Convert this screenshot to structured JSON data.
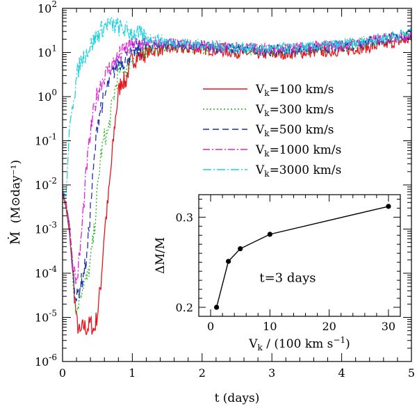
{
  "chart_data": [
    {
      "type": "line",
      "title": "",
      "xlabel": "t (days)",
      "ylabel_main": "Ṁ",
      "ylabel_unit": "(M⊙day⁻¹)",
      "xlim": [
        0,
        5
      ],
      "ylim": [
        1e-06,
        100
      ],
      "yscale": "log",
      "x_ticks": [
        0,
        1,
        2,
        3,
        4,
        5
      ],
      "x_tick_labels": [
        "0",
        "1",
        "2",
        "3",
        "4",
        "5"
      ],
      "y_ticks": [
        1e-06,
        1e-05,
        0.0001,
        0.001,
        0.01,
        0.1,
        1,
        10,
        100
      ],
      "y_tick_labels": [
        {
          "base": "10",
          "exp": "-6"
        },
        {
          "base": "10",
          "exp": "-5"
        },
        {
          "base": "10",
          "exp": "-4"
        },
        {
          "base": "10",
          "exp": "-3"
        },
        {
          "base": "10",
          "exp": "-2"
        },
        {
          "base": "10",
          "exp": "-1"
        },
        {
          "base": "10",
          "exp": "0"
        },
        {
          "base": "10",
          "exp": "1"
        },
        {
          "base": "10",
          "exp": "2"
        }
      ],
      "legend_position": "center-right",
      "series": [
        {
          "name": "Vk=100 km/s",
          "label_pre": "V",
          "label_sub": "k",
          "label_post": "=100 km/s",
          "color": "#e8141c",
          "dash": "",
          "points": [
            [
              0,
              0.0065
            ],
            [
              0.05,
              0.003
            ],
            [
              0.1,
              0.0008
            ],
            [
              0.15,
              8e-05
            ],
            [
              0.2,
              8.5e-06
            ],
            [
              0.25,
              4e-06
            ],
            [
              0.3,
              6.5e-06
            ],
            [
              0.35,
              5.5e-06
            ],
            [
              0.4,
              7.5e-06
            ],
            [
              0.45,
              5e-06
            ],
            [
              0.5,
              1.2e-05
            ],
            [
              0.55,
              6e-05
            ],
            [
              0.6,
              0.0009
            ],
            [
              0.65,
              0.004
            ],
            [
              0.7,
              0.03
            ],
            [
              0.75,
              0.25
            ],
            [
              0.8,
              1.2
            ],
            [
              0.85,
              2.5
            ],
            [
              0.9,
              2.0
            ],
            [
              0.95,
              4.5
            ],
            [
              1.0,
              7
            ],
            [
              1.2,
              10
            ],
            [
              1.5,
              12
            ],
            [
              2,
              12
            ],
            [
              2.5,
              10
            ],
            [
              3,
              9
            ],
            [
              3.5,
              10
            ],
            [
              4,
              11
            ],
            [
              4.5,
              14
            ],
            [
              5,
              20
            ]
          ]
        },
        {
          "name": "Vk=300 km/s",
          "label_pre": "V",
          "label_sub": "k",
          "label_post": "=300 km/s",
          "color": "#1db31d",
          "dash": "2,3",
          "points": [
            [
              0,
              0.007
            ],
            [
              0.05,
              0.0035
            ],
            [
              0.1,
              0.001
            ],
            [
              0.15,
              8e-05
            ],
            [
              0.2,
              1.2e-05
            ],
            [
              0.25,
              3.5e-05
            ],
            [
              0.3,
              6e-05
            ],
            [
              0.35,
              7e-05
            ],
            [
              0.4,
              0.00018
            ],
            [
              0.45,
              0.0008
            ],
            [
              0.5,
              0.007
            ],
            [
              0.55,
              0.05
            ],
            [
              0.6,
              0.12
            ],
            [
              0.65,
              0.15
            ],
            [
              0.7,
              0.5
            ],
            [
              0.75,
              1.4
            ],
            [
              0.8,
              3.5
            ],
            [
              0.85,
              5
            ],
            [
              0.9,
              4
            ],
            [
              1.0,
              8
            ],
            [
              1.2,
              12
            ],
            [
              1.5,
              14
            ],
            [
              2,
              13
            ],
            [
              2.5,
              12
            ],
            [
              3,
              11
            ],
            [
              3.5,
              12
            ],
            [
              4,
              14
            ],
            [
              4.5,
              18
            ],
            [
              5,
              24
            ]
          ]
        },
        {
          "name": "Vk=500 km/s",
          "label_pre": "V",
          "label_sub": "k",
          "label_post": "=500 km/s",
          "color": "#1c2fb0",
          "dash": "9,5",
          "points": [
            [
              0,
              0.007
            ],
            [
              0.05,
              0.004
            ],
            [
              0.1,
              0.0012
            ],
            [
              0.15,
              0.0001
            ],
            [
              0.2,
              2.5e-05
            ],
            [
              0.25,
              5e-05
            ],
            [
              0.3,
              9e-05
            ],
            [
              0.35,
              0.00025
            ],
            [
              0.4,
              0.003
            ],
            [
              0.45,
              0.03
            ],
            [
              0.5,
              0.25
            ],
            [
              0.55,
              0.6
            ],
            [
              0.6,
              0.9
            ],
            [
              0.65,
              1.8
            ],
            [
              0.7,
              3
            ],
            [
              0.8,
              6
            ],
            [
              0.9,
              7
            ],
            [
              1.0,
              10
            ],
            [
              1.2,
              14
            ],
            [
              1.5,
              15
            ],
            [
              2,
              14
            ],
            [
              2.5,
              12
            ],
            [
              3,
              11
            ],
            [
              3.5,
              12
            ],
            [
              4,
              14
            ],
            [
              4.5,
              19
            ],
            [
              5,
              25
            ]
          ]
        },
        {
          "name": "Vk=1000 km/s",
          "label_pre": "V",
          "label_sub": "k",
          "label_post": "=1000 km/s",
          "color": "#e21fd2",
          "dash": "10,3,2,3",
          "points": [
            [
              0,
              0.008
            ],
            [
              0.05,
              0.004
            ],
            [
              0.1,
              0.0012
            ],
            [
              0.15,
              0.00015
            ],
            [
              0.2,
              6e-05
            ],
            [
              0.25,
              0.0003
            ],
            [
              0.3,
              0.003
            ],
            [
              0.35,
              0.03
            ],
            [
              0.4,
              0.15
            ],
            [
              0.45,
              0.5
            ],
            [
              0.5,
              1.2
            ],
            [
              0.55,
              2
            ],
            [
              0.6,
              3
            ],
            [
              0.7,
              5
            ],
            [
              0.8,
              8
            ],
            [
              0.9,
              12
            ],
            [
              1.0,
              15
            ],
            [
              1.1,
              16
            ],
            [
              1.2,
              17
            ],
            [
              1.5,
              16
            ],
            [
              2,
              14
            ],
            [
              2.5,
              13
            ],
            [
              3,
              12
            ],
            [
              3.5,
              13
            ],
            [
              4,
              15
            ],
            [
              4.5,
              19
            ],
            [
              5,
              26
            ]
          ]
        },
        {
          "name": "Vk=3000 km/s",
          "label_pre": "V",
          "label_sub": "k",
          "label_post": "=3000 km/s",
          "color": "#20d2dc",
          "dash": "12,3,2,3",
          "points": [
            [
              0,
              0.008
            ],
            [
              0.05,
              0.005
            ],
            [
              0.1,
              0.2
            ],
            [
              0.15,
              0.8
            ],
            [
              0.2,
              2.5
            ],
            [
              0.25,
              6
            ],
            [
              0.3,
              8
            ],
            [
              0.4,
              14
            ],
            [
              0.5,
              25
            ],
            [
              0.6,
              38
            ],
            [
              0.65,
              45
            ],
            [
              0.7,
              42
            ],
            [
              0.8,
              38
            ],
            [
              0.9,
              32
            ],
            [
              1.0,
              28
            ],
            [
              1.2,
              22
            ],
            [
              1.5,
              18
            ],
            [
              2,
              15
            ],
            [
              2.5,
              13
            ],
            [
              3,
              12
            ],
            [
              3.5,
              13
            ],
            [
              4,
              15
            ],
            [
              4.5,
              20
            ],
            [
              5,
              28
            ]
          ]
        }
      ]
    },
    {
      "type": "scatter",
      "title": "",
      "annotation": "t=3 days",
      "xlabel_pre": "V",
      "xlabel_sub": "k",
      "xlabel_post": " / (100 km s",
      "xlabel_sup": "−1",
      "xlabel_end": ")",
      "ylabel": "ΔM/M",
      "xlim": [
        -2,
        32
      ],
      "ylim": [
        0.19,
        0.325
      ],
      "x_ticks": [
        0,
        10,
        20,
        30
      ],
      "x_tick_labels": [
        "0",
        "10",
        "20",
        "30"
      ],
      "y_ticks": [
        0.2,
        0.3
      ],
      "y_tick_labels": [
        "0.2",
        "0.3"
      ],
      "x": [
        1,
        3,
        5,
        10,
        30
      ],
      "y": [
        0.2,
        0.251,
        0.265,
        0.281,
        0.312
      ],
      "marker_color": "#000000"
    }
  ]
}
